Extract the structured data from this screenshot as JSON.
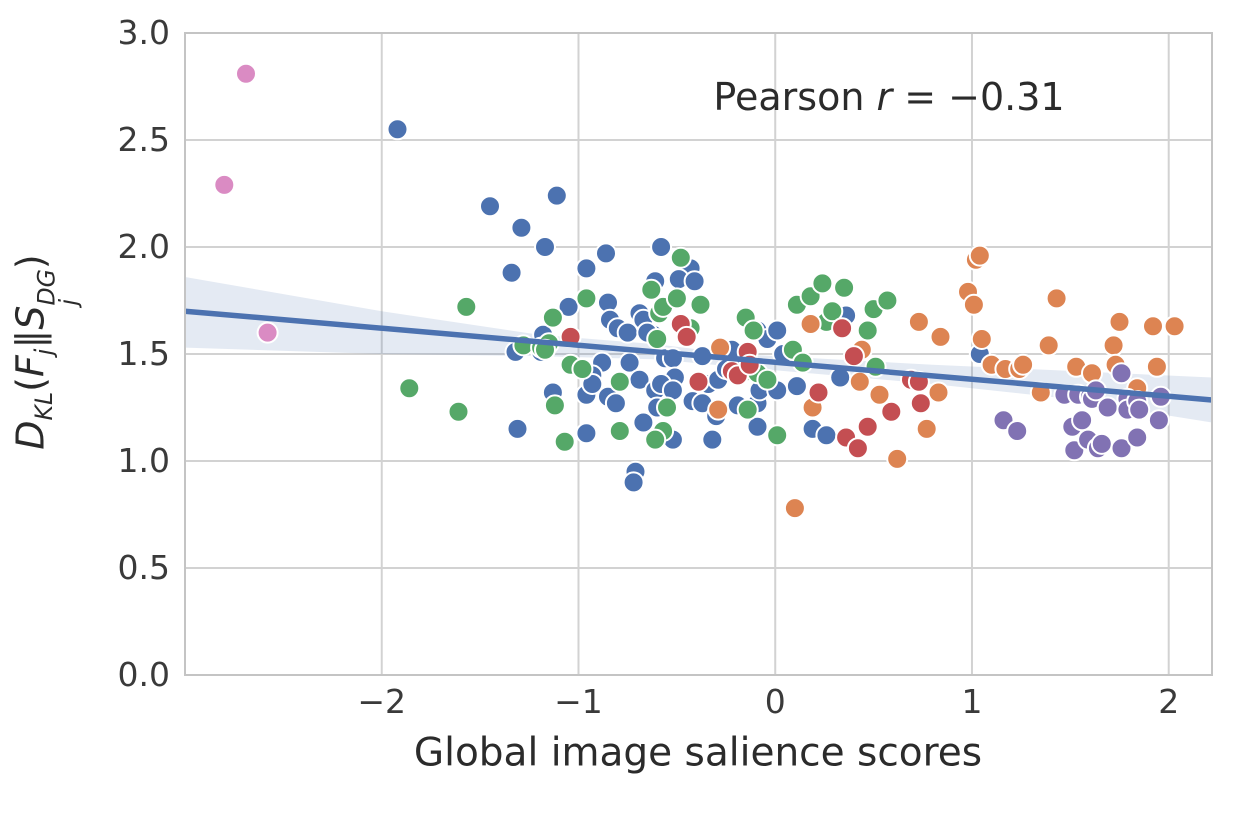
{
  "figure": {
    "annotation": {
      "prefix": "Pearson ",
      "variable": "r",
      "value": " = −0.31"
    },
    "xlabel": "Global image salience scores",
    "ylabel": {
      "base": "D",
      "base_sub": "KL",
      "open_paren": "(",
      "f": "F",
      "f_sub": "j",
      "double_bar": "∥",
      "s": "S",
      "s_sup": "DG",
      "s_sub": "j",
      "close_paren": ")"
    }
  },
  "chart_data": {
    "type": "scatter",
    "title": "",
    "annotation": "Pearson r = −0.31",
    "xlabel": "Global image salience scores",
    "ylabel": "D_KL(F_j ∥ S_j^DG)",
    "xlim": [
      -3.0,
      2.22
    ],
    "ylim": [
      0.0,
      3.0
    ],
    "grid": true,
    "legend": "none",
    "grid_color": "#d2d2d2",
    "spine_color": "#c4c4c4",
    "background": "#ffffff",
    "xticks": {
      "values": [
        -2,
        -1,
        0,
        1,
        2
      ],
      "labels": [
        "−2",
        "−1",
        "0",
        "1",
        "2"
      ]
    },
    "yticks": {
      "values": [
        0.0,
        0.5,
        1.0,
        1.5,
        2.0,
        2.5,
        3.0
      ],
      "labels": [
        "0.0",
        "0.5",
        "1.0",
        "1.5",
        "2.0",
        "2.5",
        "3.0"
      ]
    },
    "regression": {
      "color": "#4C72B0",
      "width": 5.5,
      "x1": -3.0,
      "y1": 1.7,
      "x2": 2.22,
      "y2": 1.285
    },
    "ci_band": {
      "fill": "rgba(76,114,176,0.15)",
      "points": [
        {
          "x": -3.0,
          "top": 1.86,
          "bot": 1.53
        },
        {
          "x": -2.0,
          "top": 1.7,
          "bot": 1.5
        },
        {
          "x": -1.2,
          "top": 1.59,
          "bot": 1.49
        },
        {
          "x": -0.6,
          "top": 1.545,
          "bot": 1.475
        },
        {
          "x": -0.2,
          "top": 1.5,
          "bot": 1.44
        },
        {
          "x": 0.3,
          "top": 1.475,
          "bot": 1.4
        },
        {
          "x": 0.8,
          "top": 1.45,
          "bot": 1.36
        },
        {
          "x": 1.4,
          "top": 1.425,
          "bot": 1.3
        },
        {
          "x": 2.22,
          "top": 1.39,
          "bot": 1.18
        }
      ]
    },
    "marker": {
      "radius": 10,
      "edge_color": "#ffffff",
      "edge_width": 2
    },
    "series": [
      {
        "name": "group-blue",
        "color": "#4C72B0",
        "points": [
          [
            -1.92,
            2.55
          ],
          [
            -1.45,
            2.19
          ],
          [
            -1.11,
            2.24
          ],
          [
            -1.29,
            2.09
          ],
          [
            -1.17,
            2.0
          ],
          [
            -1.34,
            1.88
          ],
          [
            -0.96,
            1.9
          ],
          [
            -0.86,
            1.97
          ],
          [
            -0.58,
            2.0
          ],
          [
            -0.43,
            1.9
          ],
          [
            -0.49,
            1.85
          ],
          [
            -0.41,
            1.84
          ],
          [
            -0.61,
            1.84
          ],
          [
            -1.05,
            1.72
          ],
          [
            -0.85,
            1.74
          ],
          [
            -0.84,
            1.66
          ],
          [
            -0.88,
            1.46
          ],
          [
            -0.93,
            1.4
          ],
          [
            -1.18,
            1.59
          ],
          [
            -1.19,
            1.51
          ],
          [
            -1.32,
            1.51
          ],
          [
            -1.13,
            1.32
          ],
          [
            -1.31,
            1.15
          ],
          [
            -0.96,
            1.31
          ],
          [
            -0.93,
            1.36
          ],
          [
            -0.96,
            1.13
          ],
          [
            -0.85,
            1.3
          ],
          [
            -0.81,
            1.27
          ],
          [
            -0.8,
            1.62
          ],
          [
            -0.75,
            1.6
          ],
          [
            -0.74,
            1.46
          ],
          [
            -0.69,
            1.69
          ],
          [
            -0.67,
            1.66
          ],
          [
            -0.62,
            1.59
          ],
          [
            -0.65,
            1.6
          ],
          [
            -0.56,
            1.48
          ],
          [
            -0.52,
            1.48
          ],
          [
            -0.51,
            1.39
          ],
          [
            -0.69,
            1.38
          ],
          [
            -0.67,
            1.18
          ],
          [
            -0.61,
            1.33
          ],
          [
            -0.58,
            1.36
          ],
          [
            -0.6,
            1.25
          ],
          [
            -0.52,
            1.33
          ],
          [
            -0.52,
            1.1
          ],
          [
            -0.42,
            1.28
          ],
          [
            -0.37,
            1.27
          ],
          [
            -0.34,
            1.36
          ],
          [
            -0.3,
            1.21
          ],
          [
            -0.32,
            1.1
          ],
          [
            -0.37,
            1.49
          ],
          [
            -0.29,
            1.38
          ],
          [
            -0.25,
            1.43
          ],
          [
            -0.18,
            1.44
          ],
          [
            -0.22,
            1.52
          ],
          [
            -0.19,
            1.26
          ],
          [
            -0.09,
            1.61
          ],
          [
            -0.04,
            1.57
          ],
          [
            0.01,
            1.61
          ],
          [
            0.04,
            1.5
          ],
          [
            -0.09,
            1.27
          ],
          [
            -0.09,
            1.16
          ],
          [
            -0.08,
            1.33
          ],
          [
            0.01,
            1.33
          ],
          [
            0.11,
            1.35
          ],
          [
            0.19,
            1.15
          ],
          [
            0.26,
            1.12
          ],
          [
            0.33,
            1.39
          ],
          [
            0.36,
            1.68
          ],
          [
            1.04,
            1.5
          ],
          [
            -0.71,
            0.95
          ],
          [
            -0.72,
            0.9
          ]
        ]
      },
      {
        "name": "group-green",
        "color": "#55A868",
        "points": [
          [
            -1.86,
            1.34
          ],
          [
            -1.61,
            1.23
          ],
          [
            -1.57,
            1.72
          ],
          [
            -1.28,
            1.54
          ],
          [
            -1.19,
            1.53
          ],
          [
            -1.15,
            1.55
          ],
          [
            -1.17,
            1.52
          ],
          [
            -1.13,
            1.67
          ],
          [
            -1.12,
            1.26
          ],
          [
            -1.07,
            1.09
          ],
          [
            -1.04,
            1.45
          ],
          [
            -0.98,
            1.43
          ],
          [
            -0.96,
            1.76
          ],
          [
            -0.79,
            1.37
          ],
          [
            -0.79,
            1.14
          ],
          [
            -0.63,
            1.8
          ],
          [
            -0.59,
            1.69
          ],
          [
            -0.57,
            1.72
          ],
          [
            -0.6,
            1.57
          ],
          [
            -0.57,
            1.14
          ],
          [
            -0.61,
            1.1
          ],
          [
            -0.55,
            1.25
          ],
          [
            -0.5,
            1.76
          ],
          [
            -0.48,
            1.95
          ],
          [
            -0.43,
            1.62
          ],
          [
            -0.38,
            1.73
          ],
          [
            -0.15,
            1.67
          ],
          [
            -0.14,
            1.42
          ],
          [
            -0.11,
            1.61
          ],
          [
            -0.09,
            1.41
          ],
          [
            -0.14,
            1.24
          ],
          [
            -0.04,
            1.38
          ],
          [
            0.01,
            1.12
          ],
          [
            0.09,
            1.52
          ],
          [
            0.11,
            1.73
          ],
          [
            0.14,
            1.46
          ],
          [
            0.18,
            1.77
          ],
          [
            0.24,
            1.83
          ],
          [
            0.26,
            1.65
          ],
          [
            0.29,
            1.7
          ],
          [
            0.35,
            1.81
          ],
          [
            0.47,
            1.61
          ],
          [
            0.5,
            1.71
          ],
          [
            0.51,
            1.44
          ],
          [
            0.57,
            1.75
          ]
        ]
      },
      {
        "name": "group-orange",
        "color": "#DD8452",
        "points": [
          [
            -0.29,
            1.24
          ],
          [
            -0.28,
            1.53
          ],
          [
            0.1,
            0.78
          ],
          [
            0.18,
            1.64
          ],
          [
            0.19,
            1.25
          ],
          [
            0.43,
            1.37
          ],
          [
            0.44,
            1.52
          ],
          [
            0.53,
            1.31
          ],
          [
            0.62,
            1.01
          ],
          [
            0.73,
            1.65
          ],
          [
            0.77,
            1.15
          ],
          [
            0.83,
            1.32
          ],
          [
            0.84,
            1.58
          ],
          [
            0.98,
            1.79
          ],
          [
            1.01,
            1.73
          ],
          [
            1.02,
            1.94
          ],
          [
            1.04,
            1.96
          ],
          [
            1.05,
            1.57
          ],
          [
            1.1,
            1.45
          ],
          [
            1.17,
            1.43
          ],
          [
            1.24,
            1.43
          ],
          [
            1.26,
            1.45
          ],
          [
            1.35,
            1.32
          ],
          [
            1.39,
            1.54
          ],
          [
            1.43,
            1.76
          ],
          [
            1.53,
            1.44
          ],
          [
            1.61,
            1.41
          ],
          [
            1.72,
            1.54
          ],
          [
            1.73,
            1.45
          ],
          [
            1.75,
            1.65
          ],
          [
            1.84,
            1.34
          ],
          [
            1.92,
            1.63
          ],
          [
            1.94,
            1.44
          ],
          [
            2.03,
            1.63
          ]
        ]
      },
      {
        "name": "group-red",
        "color": "#C44E52",
        "points": [
          [
            -1.04,
            1.58
          ],
          [
            -0.48,
            1.64
          ],
          [
            -0.45,
            1.58
          ],
          [
            -0.39,
            1.37
          ],
          [
            -0.22,
            1.42
          ],
          [
            -0.19,
            1.4
          ],
          [
            -0.14,
            1.51
          ],
          [
            -0.13,
            1.45
          ],
          [
            0.22,
            1.32
          ],
          [
            0.34,
            1.62
          ],
          [
            0.36,
            1.11
          ],
          [
            0.4,
            1.49
          ],
          [
            0.42,
            1.06
          ],
          [
            0.47,
            1.16
          ],
          [
            0.59,
            1.23
          ],
          [
            0.69,
            1.38
          ],
          [
            0.73,
            1.37
          ],
          [
            0.74,
            1.27
          ]
        ]
      },
      {
        "name": "group-purple",
        "color": "#8172B3",
        "points": [
          [
            1.16,
            1.19
          ],
          [
            1.23,
            1.14
          ],
          [
            1.47,
            1.31
          ],
          [
            1.51,
            1.16
          ],
          [
            1.52,
            1.05
          ],
          [
            1.54,
            1.31
          ],
          [
            1.56,
            1.19
          ],
          [
            1.59,
            1.1
          ],
          [
            1.6,
            1.3
          ],
          [
            1.61,
            1.29
          ],
          [
            1.63,
            1.33
          ],
          [
            1.64,
            1.06
          ],
          [
            1.66,
            1.08
          ],
          [
            1.69,
            1.25
          ],
          [
            1.76,
            1.41
          ],
          [
            1.76,
            1.06
          ],
          [
            1.79,
            1.29
          ],
          [
            1.79,
            1.24
          ],
          [
            1.84,
            1.28
          ],
          [
            1.84,
            1.11
          ],
          [
            1.85,
            1.24
          ],
          [
            1.95,
            1.19
          ],
          [
            1.96,
            1.3
          ]
        ]
      },
      {
        "name": "group-pink",
        "color": "#DA8BC3",
        "points": [
          [
            -2.69,
            2.81
          ],
          [
            -2.8,
            2.29
          ],
          [
            -2.58,
            1.6
          ]
        ]
      }
    ]
  }
}
